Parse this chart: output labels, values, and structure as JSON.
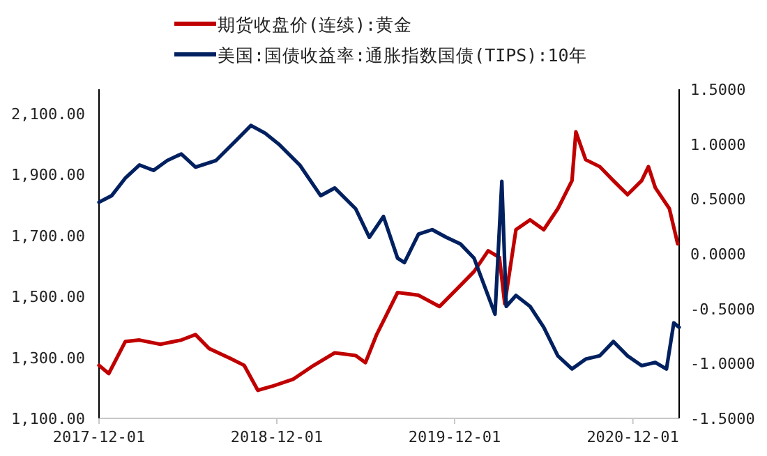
{
  "chart_data": {
    "type": "line",
    "legend": "top",
    "xlim": [
      "2017-12-01",
      "2021-03-06"
    ],
    "xticks": [
      "2017-12-01",
      "2018-12-01",
      "2019-12-01",
      "2020-12-01"
    ],
    "ylim": [
      1100,
      2180
    ],
    "yticks": [
      {
        "value": 1100,
        "label": "1,100.00"
      },
      {
        "value": 1300,
        "label": "1,300.00"
      },
      {
        "value": 1500,
        "label": "1,500.00"
      },
      {
        "value": 1700,
        "label": "1,700.00"
      },
      {
        "value": 1900,
        "label": "1,900.00"
      },
      {
        "value": 2100,
        "label": "2,100.00"
      }
    ],
    "y2lim": [
      -1.5,
      1.5
    ],
    "y2ticks": [
      {
        "value": -1.5,
        "label": "-1.5000"
      },
      {
        "value": -1,
        "label": "-1.0000"
      },
      {
        "value": -0.5,
        "label": "-0.5000"
      },
      {
        "value": 0,
        "label": "0.0000"
      },
      {
        "value": 0.5,
        "label": "0.5000"
      },
      {
        "value": 1,
        "label": "1.0000"
      },
      {
        "value": 1.5,
        "label": "1.5000"
      }
    ],
    "series": [
      {
        "name": "期货收盘价(连续):黄金",
        "color": "#c00000",
        "axis": "y",
        "x": [
          "2017-12-01",
          "2017-12-21",
          "2018-01-24",
          "2018-02-22",
          "2018-04-06",
          "2018-05-19",
          "2018-06-17",
          "2018-07-15",
          "2018-08-27",
          "2018-09-25",
          "2018-10-23",
          "2018-11-21",
          "2019-01-03",
          "2019-02-15",
          "2019-03-30",
          "2019-05-12",
          "2019-06-01",
          "2019-06-24",
          "2019-08-06",
          "2019-09-18",
          "2019-10-31",
          "2019-12-13",
          "2020-01-10",
          "2020-02-08",
          "2020-03-02",
          "2020-03-13",
          "2020-04-05",
          "2020-05-04",
          "2020-06-01",
          "2020-06-30",
          "2020-07-29",
          "2020-08-06",
          "2020-08-26",
          "2020-09-24",
          "2020-10-22",
          "2020-11-20",
          "2020-12-19",
          "2021-01-02",
          "2021-01-16",
          "2021-02-14",
          "2021-03-03"
        ],
        "values": [
          1274,
          1247,
          1352,
          1357,
          1343,
          1357,
          1375,
          1329,
          1297,
          1274,
          1192,
          1205,
          1228,
          1274,
          1315,
          1306,
          1283,
          1375,
          1513,
          1504,
          1467,
          1536,
          1582,
          1650,
          1628,
          1476,
          1719,
          1751,
          1719,
          1788,
          1880,
          2040,
          1949,
          1926,
          1880,
          1834,
          1880,
          1926,
          1857,
          1788,
          1673
        ]
      },
      {
        "name": "美国:国债收益率:通胀指数国债(TIPS):10年",
        "color": "#002060",
        "axis": "y2",
        "x": [
          "2017-12-01",
          "2017-12-27",
          "2018-01-24",
          "2018-02-22",
          "2018-03-23",
          "2018-04-20",
          "2018-05-19",
          "2018-06-17",
          "2018-07-29",
          "2018-09-10",
          "2018-10-09",
          "2018-11-07",
          "2018-12-05",
          "2019-01-17",
          "2019-03-01",
          "2019-03-30",
          "2019-05-12",
          "2019-06-09",
          "2019-07-08",
          "2019-08-06",
          "2019-08-20",
          "2019-09-18",
          "2019-10-16",
          "2019-11-14",
          "2019-12-13",
          "2020-01-10",
          "2020-02-22",
          "2020-03-07",
          "2020-03-16",
          "2020-04-05",
          "2020-05-04",
          "2020-06-01",
          "2020-06-30",
          "2020-07-29",
          "2020-08-26",
          "2020-09-24",
          "2020-10-22",
          "2020-11-20",
          "2020-12-19",
          "2021-01-16",
          "2021-02-08",
          "2021-02-23",
          "2021-03-06"
        ],
        "values": [
          0.47,
          0.53,
          0.69,
          0.81,
          0.76,
          0.85,
          0.91,
          0.79,
          0.85,
          1.04,
          1.17,
          1.1,
          1.0,
          0.81,
          0.53,
          0.6,
          0.41,
          0.15,
          0.34,
          -0.04,
          -0.08,
          0.18,
          0.22,
          0.15,
          0.09,
          -0.04,
          -0.55,
          0.66,
          -0.48,
          -0.38,
          -0.48,
          -0.67,
          -0.93,
          -1.05,
          -0.96,
          -0.93,
          -0.8,
          -0.93,
          -1.02,
          -0.99,
          -1.05,
          -0.63,
          -0.67
        ]
      }
    ]
  }
}
